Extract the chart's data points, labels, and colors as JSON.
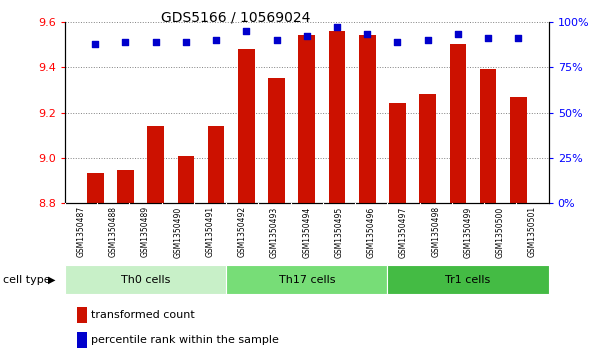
{
  "title": "GDS5166 / 10569024",
  "samples": [
    "GSM1350487",
    "GSM1350488",
    "GSM1350489",
    "GSM1350490",
    "GSM1350491",
    "GSM1350492",
    "GSM1350493",
    "GSM1350494",
    "GSM1350495",
    "GSM1350496",
    "GSM1350497",
    "GSM1350498",
    "GSM1350499",
    "GSM1350500",
    "GSM1350501"
  ],
  "transformed_count": [
    8.935,
    8.945,
    9.14,
    9.01,
    9.14,
    9.48,
    9.35,
    9.54,
    9.56,
    9.54,
    9.24,
    9.28,
    9.5,
    9.39,
    9.27
  ],
  "percentile_rank": [
    88,
    89,
    89,
    89,
    90,
    95,
    90,
    92,
    97,
    93,
    89,
    90,
    93,
    91,
    91
  ],
  "cell_types": [
    {
      "label": "Th0 cells",
      "start": 0,
      "end": 5,
      "color": "#aae6aa"
    },
    {
      "label": "Th17 cells",
      "start": 5,
      "end": 10,
      "color": "#66dd66"
    },
    {
      "label": "Tr1 cells",
      "start": 10,
      "end": 15,
      "color": "#44cc44"
    }
  ],
  "ylim_left": [
    8.8,
    9.6
  ],
  "ylim_right": [
    0,
    100
  ],
  "yticks_left": [
    8.8,
    9.0,
    9.2,
    9.4,
    9.6
  ],
  "yticks_right": [
    0,
    25,
    50,
    75,
    100
  ],
  "bar_color": "#cc1100",
  "dot_color": "#0000cc",
  "bar_width": 0.55,
  "label_bg_color": "#d0d0d0",
  "plot_bg": "#ffffff",
  "legend_labels": [
    "transformed count",
    "percentile rank within the sample"
  ],
  "legend_colors": [
    "#cc1100",
    "#0000cc"
  ],
  "cell_type_label": "cell type"
}
